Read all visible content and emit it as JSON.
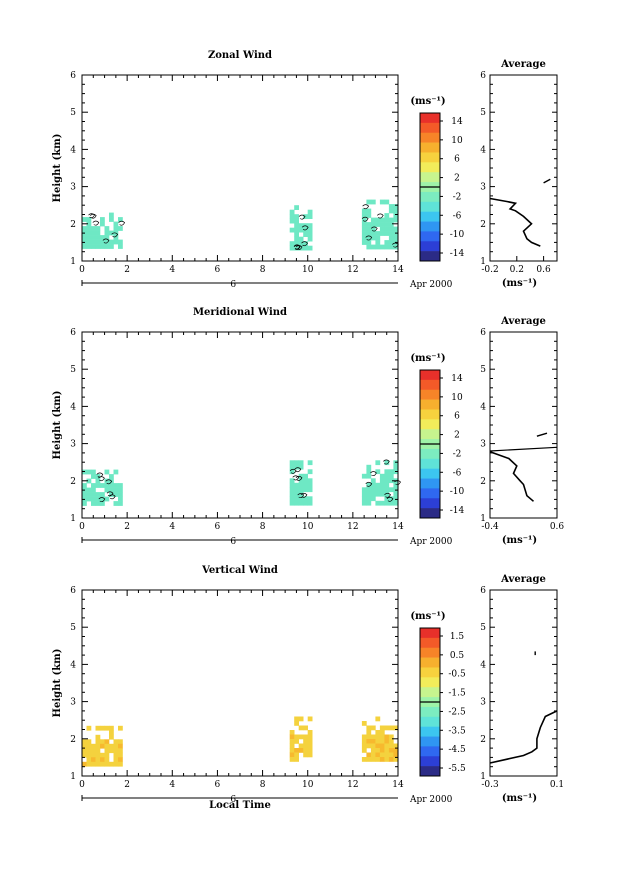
{
  "colors": {
    "zonal_patch": "#6ee8c4",
    "meridional_patch": "#6ee8c4",
    "vertical_patch": "#f4d23e",
    "vertical_patch_alt": "#f7b92e"
  },
  "common": {
    "x_ticks": [
      "0",
      "2",
      "4",
      "6",
      "8",
      "10",
      "12",
      "14"
    ],
    "date_tick": "6",
    "date_label": "Apr 2000",
    "colorbar_unit": "(ms⁻¹)",
    "avg_title": "Average",
    "avg_xlabel": "(ms⁻¹)",
    "xlabel": "Local Time"
  },
  "chart_data": [
    {
      "type": "heatmap",
      "title": "Zonal Wind",
      "ylabel": "Height (km)",
      "xlim": [
        0,
        14
      ],
      "ylim": [
        1,
        6
      ],
      "y_ticks": [
        "1",
        "2",
        "3",
        "4",
        "5",
        "6"
      ],
      "colorbar_ticks": [
        "14",
        "10",
        "6",
        "2",
        "-2",
        "-6",
        "-10",
        "-14"
      ],
      "colorbar_range": [
        -16,
        16
      ],
      "patches": [
        {
          "x": [
            0,
            1.7
          ],
          "y": [
            1.35,
            2.3
          ],
          "approx_value": -2
        },
        {
          "x": [
            9.2,
            10.0
          ],
          "y": [
            1.35,
            2.5
          ],
          "approx_value": -2
        },
        {
          "x": [
            12.4,
            13.9
          ],
          "y": [
            1.35,
            2.65
          ],
          "approx_value": -2
        }
      ],
      "average_profile": {
        "title": "Average",
        "xlim": [
          -0.2,
          0.8
        ],
        "x_ticks": [
          "-0.2",
          "0.2",
          "0.6"
        ],
        "ylim": [
          1,
          6
        ],
        "points": [
          [
            0.55,
            1.4
          ],
          [
            0.42,
            1.5
          ],
          [
            0.35,
            1.6
          ],
          [
            0.3,
            1.8
          ],
          [
            0.42,
            2.0
          ],
          [
            0.3,
            2.2
          ],
          [
            0.18,
            2.35
          ],
          [
            0.1,
            2.4
          ],
          [
            0.18,
            2.55
          ],
          [
            0.05,
            2.6
          ],
          [
            -0.2,
            2.68
          ]
        ],
        "points_upper": [
          [
            0.6,
            3.1
          ],
          [
            0.7,
            3.2
          ]
        ]
      }
    },
    {
      "type": "heatmap",
      "title": "Meridional Wind",
      "ylabel": "Height (km)",
      "xlim": [
        0,
        14
      ],
      "ylim": [
        1,
        6
      ],
      "y_ticks": [
        "1",
        "2",
        "3",
        "4",
        "5",
        "6"
      ],
      "colorbar_ticks": [
        "14",
        "10",
        "6",
        "2",
        "-2",
        "-6",
        "-10",
        "-14"
      ],
      "colorbar_range": [
        -16,
        16
      ],
      "patches": [
        {
          "x": [
            0,
            1.7
          ],
          "y": [
            1.4,
            2.3
          ],
          "approx_value": -2
        },
        {
          "x": [
            9.2,
            10.0
          ],
          "y": [
            1.45,
            2.55
          ],
          "approx_value": -2
        },
        {
          "x": [
            12.4,
            13.9
          ],
          "y": [
            1.4,
            2.55
          ],
          "approx_value": -2
        }
      ],
      "average_profile": {
        "title": "Average",
        "xlim": [
          -0.4,
          0.6
        ],
        "x_ticks": [
          "-0.4",
          "0.6"
        ],
        "ylim": [
          1,
          6
        ],
        "points": [
          [
            0.25,
            1.45
          ],
          [
            0.15,
            1.6
          ],
          [
            0.1,
            1.9
          ],
          [
            0.05,
            2.0
          ],
          [
            -0.05,
            2.2
          ],
          [
            0.0,
            2.4
          ],
          [
            -0.12,
            2.6
          ],
          [
            -0.4,
            2.78
          ]
        ],
        "points_line": [
          [
            -0.4,
            2.8
          ],
          [
            0.6,
            2.9
          ]
        ],
        "points_upper": [
          [
            0.3,
            3.2
          ],
          [
            0.45,
            3.28
          ]
        ]
      }
    },
    {
      "type": "heatmap",
      "title": "Vertical Wind",
      "ylabel": "Height (km)",
      "xlabel": "Local Time",
      "xlim": [
        0,
        14
      ],
      "ylim": [
        1,
        6
      ],
      "y_ticks": [
        "1",
        "2",
        "3",
        "4",
        "5",
        "6"
      ],
      "colorbar_ticks": [
        "1.5",
        "0.5",
        "-0.5",
        "-1.5",
        "-2.5",
        "-3.5",
        "-4.5",
        "-5.5"
      ],
      "colorbar_range": [
        -6,
        2
      ],
      "patches": [
        {
          "x": [
            0,
            1.7
          ],
          "y": [
            1.35,
            2.35
          ],
          "approx_value": -1.0
        },
        {
          "x": [
            9.2,
            10.0
          ],
          "y": [
            1.4,
            2.6
          ],
          "approx_value": -0.5
        },
        {
          "x": [
            12.4,
            13.9
          ],
          "y": [
            1.4,
            2.6
          ],
          "approx_value": -0.5
        }
      ],
      "average_profile": {
        "title": "Average",
        "xlim": [
          -0.3,
          0.1
        ],
        "x_ticks": [
          "-0.3",
          "0.1"
        ],
        "ylim": [
          1,
          6
        ],
        "points": [
          [
            -0.3,
            1.35
          ],
          [
            -0.1,
            1.55
          ],
          [
            -0.05,
            1.65
          ],
          [
            -0.02,
            1.75
          ],
          [
            -0.02,
            2.0
          ],
          [
            0.0,
            2.3
          ],
          [
            0.03,
            2.6
          ],
          [
            0.1,
            2.75
          ]
        ],
        "points_upper": [
          [
            -0.03,
            4.25
          ],
          [
            -0.03,
            4.35
          ]
        ]
      }
    }
  ]
}
